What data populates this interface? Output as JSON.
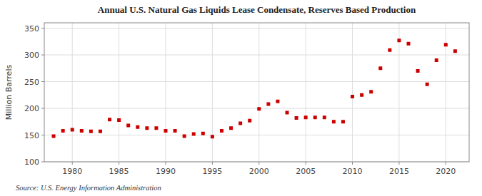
{
  "chart_data": {
    "type": "scatter",
    "title": "Annual U.S. Natural Gas Liquids Lease Condensate, Reserves Based Production",
    "ylabel": "Million Barrels",
    "source": "Source: U.S. Energy Information Administration",
    "x": [
      1978,
      1979,
      1980,
      1981,
      1982,
      1983,
      1984,
      1985,
      1986,
      1987,
      1988,
      1989,
      1990,
      1991,
      1992,
      1993,
      1994,
      1995,
      1996,
      1997,
      1998,
      1999,
      2000,
      2001,
      2002,
      2003,
      2004,
      2005,
      2006,
      2007,
      2008,
      2009,
      2010,
      2011,
      2012,
      2013,
      2014,
      2015,
      2016,
      2017,
      2018,
      2019,
      2020,
      2021
    ],
    "values": [
      148,
      158,
      160,
      158,
      157,
      157,
      179,
      178,
      168,
      165,
      163,
      163,
      158,
      158,
      148,
      152,
      153,
      147,
      158,
      163,
      172,
      177,
      199,
      208,
      213,
      192,
      182,
      183,
      183,
      183,
      175,
      175,
      222,
      225,
      231,
      275,
      309,
      327,
      321,
      270,
      245,
      290,
      319,
      307
    ],
    "color": "#CC0000",
    "marker": "square",
    "xlim": [
      1977,
      2022.5
    ],
    "ylim": [
      100,
      360
    ],
    "xticks": [
      1980,
      1985,
      1990,
      1995,
      2000,
      2005,
      2010,
      2015,
      2020
    ],
    "yticks": [
      100,
      150,
      200,
      250,
      300,
      350
    ],
    "grid": true
  }
}
